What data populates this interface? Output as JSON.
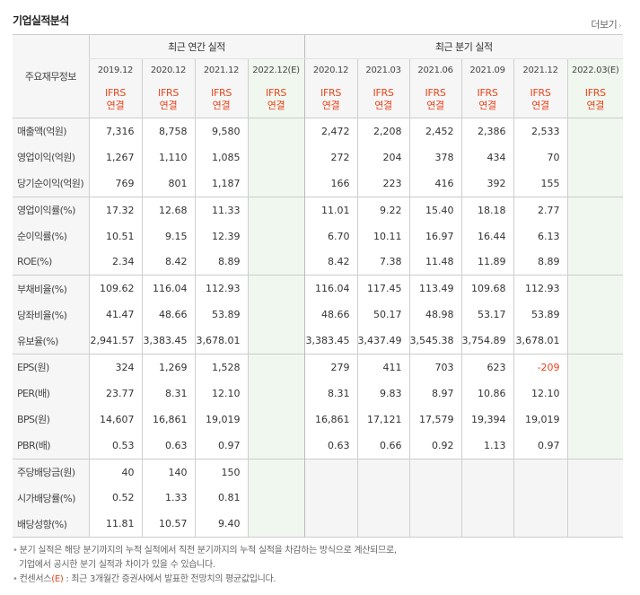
{
  "header": {
    "title": "기업실적분석",
    "more_label": "더보기"
  },
  "table": {
    "corner_label": "주요재무정보",
    "group_annual": "최근 연간 실적",
    "group_quarter": "최근 분기 실적",
    "periods": [
      "2019.12",
      "2020.12",
      "2021.12",
      "2022.12(E)",
      "2020.12",
      "2021.03",
      "2021.06",
      "2021.09",
      "2021.12",
      "2022.03(E)"
    ],
    "standard_top": "IFRS",
    "standard_bottom": "연결",
    "rows": [
      {
        "label": "매출액(억원)",
        "values": [
          "7,316",
          "8,758",
          "9,580",
          "",
          "2,472",
          "2,208",
          "2,452",
          "2,386",
          "2,533",
          ""
        ]
      },
      {
        "label": "영업이익(억원)",
        "values": [
          "1,267",
          "1,110",
          "1,085",
          "",
          "272",
          "204",
          "378",
          "434",
          "70",
          ""
        ]
      },
      {
        "label": "당기순이익(억원)",
        "values": [
          "769",
          "801",
          "1,187",
          "",
          "166",
          "223",
          "416",
          "392",
          "155",
          ""
        ]
      },
      {
        "label": "영업이익률(%)",
        "values": [
          "17.32",
          "12.68",
          "11.33",
          "",
          "11.01",
          "9.22",
          "15.40",
          "18.18",
          "2.77",
          ""
        ]
      },
      {
        "label": "순이익률(%)",
        "values": [
          "10.51",
          "9.15",
          "12.39",
          "",
          "6.70",
          "10.11",
          "16.97",
          "16.44",
          "6.13",
          ""
        ]
      },
      {
        "label": "ROE(%)",
        "values": [
          "2.34",
          "8.42",
          "8.89",
          "",
          "8.42",
          "7.38",
          "11.48",
          "11.89",
          "8.89",
          ""
        ]
      },
      {
        "label": "부채비율(%)",
        "values": [
          "109.62",
          "116.04",
          "112.93",
          "",
          "116.04",
          "117.45",
          "113.49",
          "109.68",
          "112.93",
          ""
        ]
      },
      {
        "label": "당좌비율(%)",
        "values": [
          "41.47",
          "48.66",
          "53.89",
          "",
          "48.66",
          "50.17",
          "48.98",
          "53.17",
          "53.89",
          ""
        ]
      },
      {
        "label": "유보율(%)",
        "values": [
          "2,941.57",
          "3,383.45",
          "3,678.01",
          "",
          "3,383.45",
          "3,437.49",
          "3,545.38",
          "3,754.89",
          "3,678.01",
          ""
        ]
      },
      {
        "label": "EPS(원)",
        "values": [
          "324",
          "1,269",
          "1,528",
          "",
          "279",
          "411",
          "703",
          "623",
          "-209",
          ""
        ]
      },
      {
        "label": "PER(배)",
        "values": [
          "23.77",
          "8.31",
          "12.10",
          "",
          "8.31",
          "9.83",
          "8.97",
          "10.86",
          "12.10",
          ""
        ]
      },
      {
        "label": "BPS(원)",
        "values": [
          "14,607",
          "16,861",
          "19,019",
          "",
          "16,861",
          "17,121",
          "17,579",
          "19,394",
          "19,019",
          ""
        ]
      },
      {
        "label": "PBR(배)",
        "values": [
          "0.53",
          "0.63",
          "0.97",
          "",
          "0.63",
          "0.66",
          "0.92",
          "1.13",
          "0.97",
          ""
        ]
      },
      {
        "label": "주당배당금(원)",
        "values": [
          "40",
          "140",
          "150",
          "",
          "",
          "",
          "",
          "",
          "",
          ""
        ]
      },
      {
        "label": "시가배당률(%)",
        "values": [
          "0.52",
          "1.33",
          "0.81",
          "",
          "",
          "",
          "",
          "",
          "",
          ""
        ]
      },
      {
        "label": "배당성향(%)",
        "values": [
          "11.81",
          "10.57",
          "9.40",
          "",
          "",
          "",
          "",
          "",
          "",
          ""
        ]
      }
    ]
  },
  "notes": {
    "line1": "분기 실적은 해당 분기까지의 누적 실적에서 직전 분기까지의 누적 실적을 차감하는 방식으로 계산되므로,",
    "line2": "기업에서 공시한 분기 실적과 차이가 있을 수 있습니다.",
    "line3_prefix": "컨센서스",
    "line3_mark": "(E)",
    "line3_suffix": " : 최근 3개월간 증권사에서 발표한 전망치의 평균값입니다."
  },
  "colors": {
    "accent": "#e8441c",
    "estimate_bg": "#f0f7ee",
    "header_bg": "#f6f6f6"
  }
}
